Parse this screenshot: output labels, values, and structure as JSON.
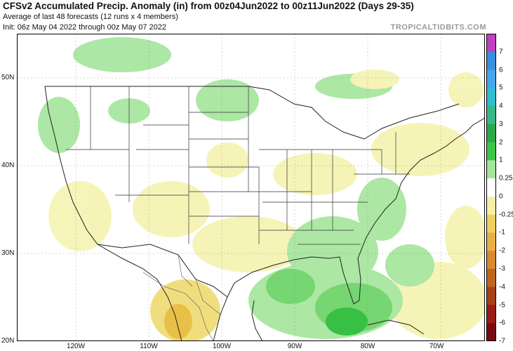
{
  "header": {
    "title": "CFSv2 Accumulated Precip. Anomaly (in) from 00z04Jun2022 to 00z11Jun2022 (Days 29-35)",
    "subtitle": "Average of last 48 forecasts (12 runs x 4 members)",
    "init": "Init: 06z May 04 2022 through 00z May 07 2022",
    "credit": "TROPICALTIDBITS.COM"
  },
  "axes": {
    "lat_labels": [
      "50N",
      "40N",
      "30N",
      "20N"
    ],
    "lon_labels": [
      "120W",
      "110W",
      "100W",
      "90W",
      "80W",
      "70W"
    ]
  },
  "colorbar": {
    "labels": [
      "7",
      "6",
      "5",
      "4",
      "3",
      "2",
      "1",
      "0.25",
      "0",
      "-0.25",
      "-1",
      "-2",
      "-3",
      "-4",
      "-5",
      "-6",
      "-7"
    ],
    "colors": [
      "#c23fc2",
      "#3a8fe0",
      "#46a6ec",
      "#2fbfcf",
      "#38b88a",
      "#2aa84a",
      "#3cc744",
      "#a4e49c",
      "#ffffff",
      "#f4f0a8",
      "#f0d060",
      "#e8b040",
      "#d88a2c",
      "#c06420",
      "#a84018",
      "#9a1c14",
      "#7a0a10"
    ]
  },
  "map": {
    "land_color": "#ffffff",
    "border_color": "#222222",
    "anomaly_colors": {
      "wet_light": "#a8e6a0",
      "wet_mid": "#6fd46a",
      "wet_strong": "#2ebd3a",
      "dry_light": "#f6f3b4",
      "dry_mid": "#f0dd78",
      "dry_strong": "#e8bd3e"
    }
  }
}
